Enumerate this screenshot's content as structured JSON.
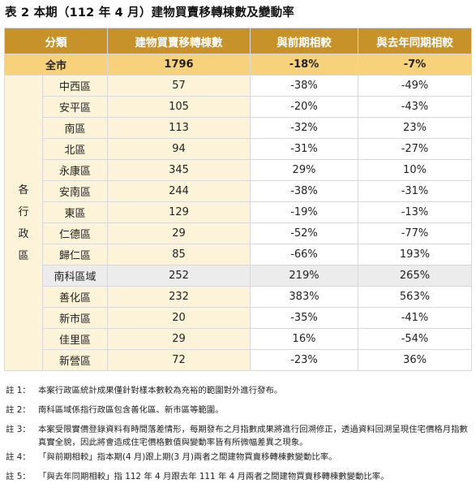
{
  "title": "表 2 本期（112 年 4 月）建物買賣移轉棟數及變動率",
  "headers": {
    "category": "分類",
    "count": "建物買賣移轉棟數",
    "vs_prev": "與前期相較",
    "vs_last_year": "與去年同期相較"
  },
  "total": {
    "label": "全市",
    "count": "1796",
    "vs_prev": "-18%",
    "vs_last_year": "-7%"
  },
  "group_label": [
    "各",
    "行",
    "政",
    "區"
  ],
  "rows": [
    {
      "name": "中西區",
      "count": "57",
      "vs_prev": "-38%",
      "vs_last_year": "-49%"
    },
    {
      "name": "安平區",
      "count": "105",
      "vs_prev": "-20%",
      "vs_last_year": "-43%"
    },
    {
      "name": "南區",
      "count": "113",
      "vs_prev": "-32%",
      "vs_last_year": "23%"
    },
    {
      "name": "北區",
      "count": "94",
      "vs_prev": "-31%",
      "vs_last_year": "-27%"
    },
    {
      "name": "永康區",
      "count": "345",
      "vs_prev": "29%",
      "vs_last_year": "10%"
    },
    {
      "name": "安南區",
      "count": "244",
      "vs_prev": "-38%",
      "vs_last_year": "-31%"
    },
    {
      "name": "東區",
      "count": "129",
      "vs_prev": "-19%",
      "vs_last_year": "-13%"
    },
    {
      "name": "仁德區",
      "count": "29",
      "vs_prev": "-52%",
      "vs_last_year": "-77%"
    },
    {
      "name": "歸仁區",
      "count": "85",
      "vs_prev": "-66%",
      "vs_last_year": "193%"
    }
  ],
  "special_row": {
    "name": "南科區域",
    "count": "252",
    "vs_prev": "219%",
    "vs_last_year": "265%"
  },
  "rows2": [
    {
      "name": "善化區",
      "count": "232",
      "vs_prev": "383%",
      "vs_last_year": "563%"
    },
    {
      "name": "新市區",
      "count": "20",
      "vs_prev": "-35%",
      "vs_last_year": "-41%"
    },
    {
      "name": "佳里區",
      "count": "29",
      "vs_prev": "16%",
      "vs_last_year": "-54%"
    },
    {
      "name": "新營區",
      "count": "72",
      "vs_prev": "-23%",
      "vs_last_year": "36%"
    }
  ],
  "notes": [
    {
      "label": "註 1：",
      "text": "本案行政區統計成果僅針對樣本數較為充裕的範圍對外進行發布。"
    },
    {
      "label": "註 2：",
      "text": "南科區域係指行政區包含善化區、新市區等範圍。"
    },
    {
      "label": "註 3：",
      "text": "本案受限實價登錄資料有時間落差情形，每期發布之月指數成果將進行回溯修正，透過資料回溯呈現住宅價格月指數真實全貌，因此將會造成住宅價格數值與變動率皆有所微幅差異之現象。"
    },
    {
      "label": "註 4：",
      "text": "「與前期相較」指本期(4 月)跟上期(3 月)兩者之間建物買賣移轉棟數變動比率。"
    },
    {
      "label": "註 5：",
      "text": "「與去年同期相較」指 112 年 4 月跟去年 111 年 4 月兩者之間建物買賣移轉棟數變動比率。"
    }
  ]
}
